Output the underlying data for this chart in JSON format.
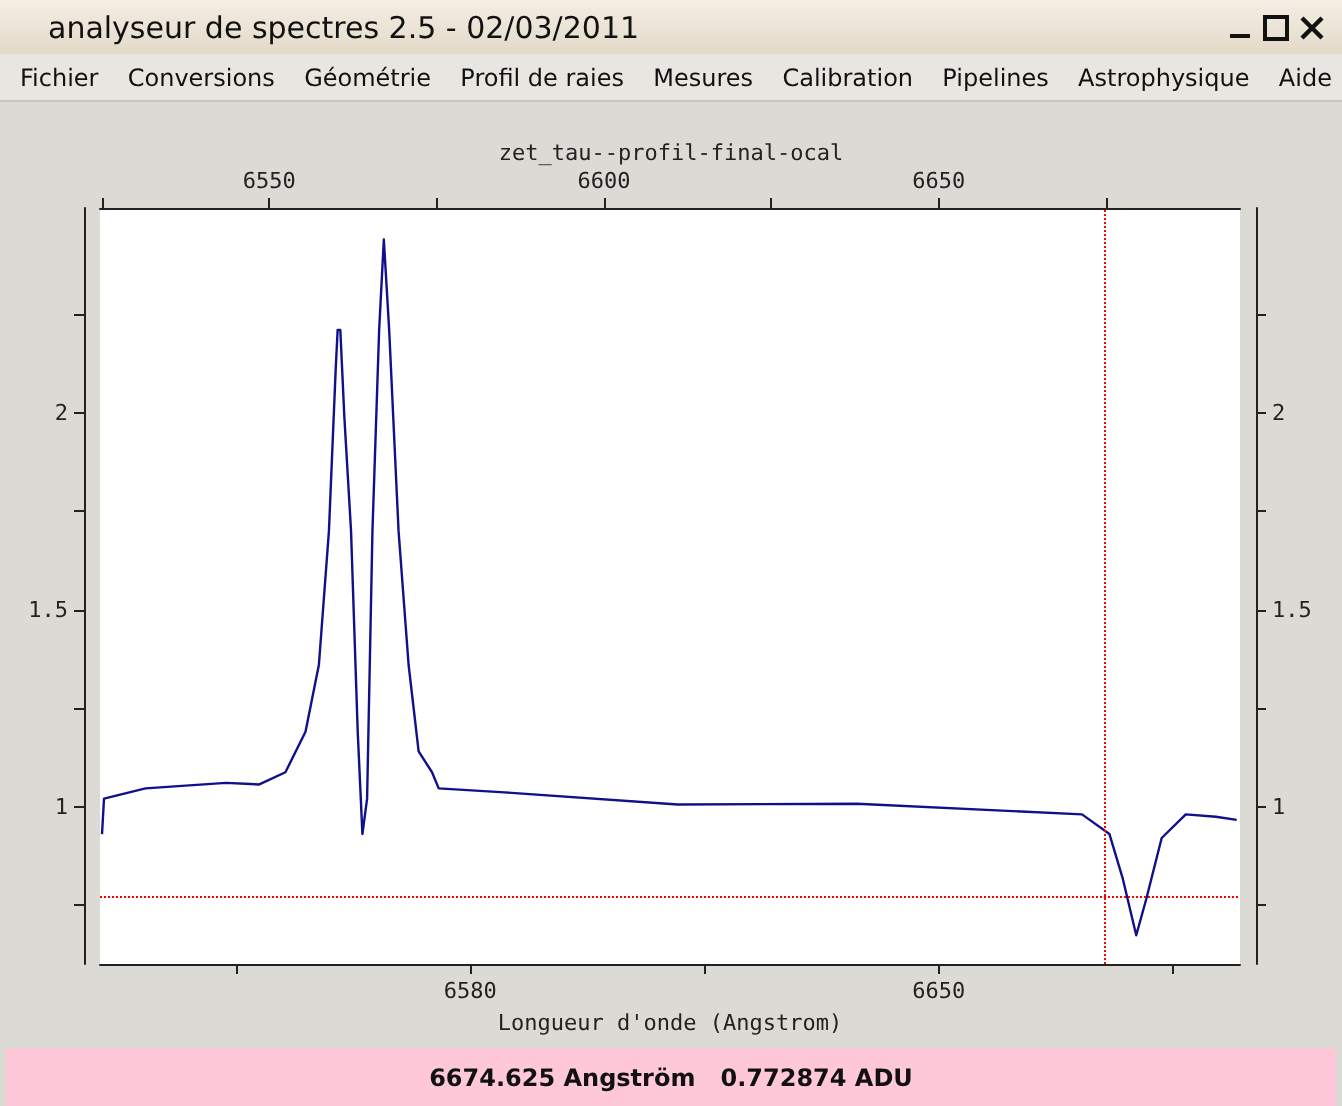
{
  "chart_data": {
    "type": "line",
    "title": "zet_tau--profil-final-ocal",
    "xlabel": "Longueur d'onde (Angstrom)",
    "annotations": [
      "analyseur de spectres 2.5 - 02/03/2011",
      "Fichier",
      "Conversions",
      "Géométrie",
      "Profil de raies",
      "Mesures",
      "Calibration",
      "Pipelines",
      "Astrophysique",
      "Aide",
      "6674.625 Angström   0.772874 ADU"
    ],
    "xlim": [
      6524.7,
      6695
    ],
    "xticks": [
      {
        "value": 6545,
        "label": null
      },
      6580,
      {
        "value": 6615,
        "label": null
      },
      6650,
      {
        "value": 6685,
        "label": null
      }
    ],
    "x2lim": [
      6524.7,
      6695
    ],
    "x2ticks": [
      {
        "value": 6525,
        "label": null
      },
      6550,
      {
        "value": 6575,
        "label": null
      },
      6600,
      {
        "value": 6625,
        "label": null
      },
      6650,
      {
        "value": 6675,
        "label": null
      }
    ],
    "ylim": [
      0.6,
      2.52
    ],
    "yticks": [
      {
        "value": 0.75,
        "label": null
      },
      1,
      {
        "value": 1.25,
        "label": null
      },
      1.5,
      {
        "value": 1.75,
        "label": null
      },
      2,
      {
        "value": 2.25,
        "label": null
      }
    ],
    "y2lim": [
      0.6,
      2.52
    ],
    "y2ticks": [
      {
        "value": 0.75,
        "label": null
      },
      1,
      {
        "value": 1.25,
        "label": null
      },
      1.5,
      {
        "value": 1.75,
        "label": null
      },
      2,
      {
        "value": 2.25,
        "label": null
      }
    ],
    "grid": false,
    "series": [
      {
        "color": "#10108a",
        "x": [
          6525,
          6525.3,
          6531.5,
          6543.5,
          6548.5,
          6552.4,
          6555.4,
          6557.4,
          6558.9,
          6559.9,
          6560.2,
          6560.6,
          6561.2,
          6562.2,
          6563.2,
          6563.9,
          6564.6,
          6565.4,
          6566.4,
          6567.1,
          6567.9,
          6569.3,
          6570.8,
          6572.3,
          6574.3,
          6575.3,
          6585.1,
          6611,
          6637.8,
          6671.4,
          6675.5,
          6677.5,
          6679.5,
          6681,
          6683.3,
          6686.9,
          6691.4,
          6694.5
        ],
        "values": [
          0.93,
          1.02,
          1.046,
          1.06,
          1.056,
          1.087,
          1.19,
          1.36,
          1.7,
          2.107,
          2.21,
          2.21,
          1.99,
          1.7,
          1.19,
          0.93,
          1.02,
          1.7,
          2.21,
          2.44,
          2.21,
          1.7,
          1.36,
          1.14,
          1.087,
          1.046,
          1.036,
          1.005,
          1.007,
          0.98,
          0.93,
          0.816,
          0.673,
          0.765,
          0.92,
          0.98,
          0.974,
          0.966
        ]
      }
    ],
    "ref_lines": [
      {
        "axis": "x",
        "value": 6674.625,
        "color": "#ff0000",
        "line_style": "dotted"
      },
      {
        "axis": "y",
        "value": 0.772874,
        "color": "#ff0000",
        "line_style": "dotted"
      }
    ]
  }
}
